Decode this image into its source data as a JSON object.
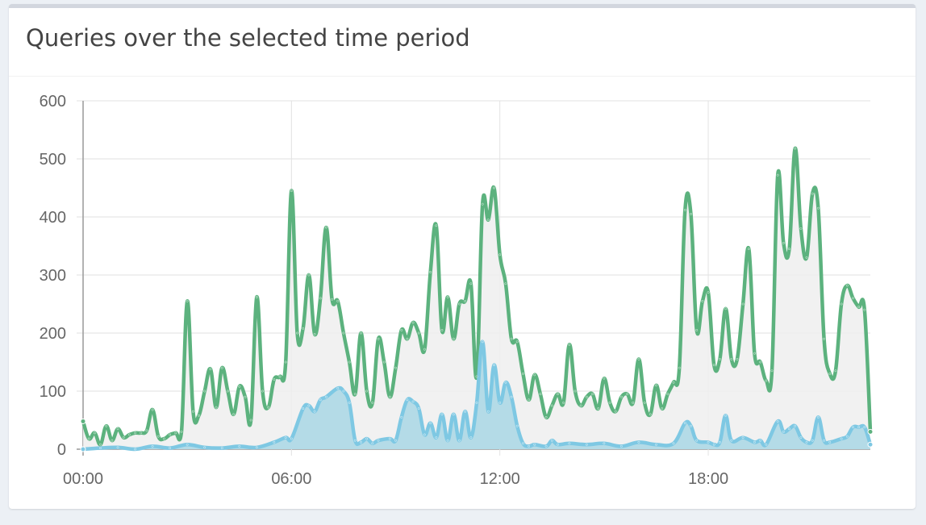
{
  "card": {
    "title": "Queries over the selected time period"
  },
  "colors": {
    "total": "#5cb27e",
    "total_fill": "#eeeeee",
    "blocked": "#7ec8e3",
    "blocked_fill": "#add8e6",
    "grid": "#e2e2e2",
    "axis": "#999999"
  },
  "chart_data": {
    "type": "area",
    "title": "Queries over the selected time period",
    "xlabel": "",
    "ylabel": "",
    "x_unit": "hours",
    "xlim": [
      0,
      22.667
    ],
    "ylim": [
      0,
      600
    ],
    "y_ticks": [
      0,
      100,
      200,
      300,
      400,
      500,
      600
    ],
    "y_tick_labels": [
      "0",
      "100",
      "200",
      "300",
      "400",
      "500",
      "600"
    ],
    "x_ticks": [
      0,
      6,
      12,
      18
    ],
    "x_tick_labels": [
      "00:00",
      "06:00",
      "12:00",
      "18:00"
    ],
    "grid": true,
    "legend": "none",
    "series": [
      {
        "key": "total",
        "points": [
          [
            0,
            48
          ],
          [
            0.167,
            18
          ],
          [
            0.333,
            28
          ],
          [
            0.5,
            8
          ],
          [
            0.667,
            40
          ],
          [
            0.833,
            15
          ],
          [
            1,
            35
          ],
          [
            1.167,
            20
          ],
          [
            1.333,
            25
          ],
          [
            1.5,
            28
          ],
          [
            1.667,
            28
          ],
          [
            1.833,
            32
          ],
          [
            2,
            68
          ],
          [
            2.167,
            22
          ],
          [
            2.333,
            18
          ],
          [
            2.5,
            25
          ],
          [
            2.667,
            28
          ],
          [
            2.833,
            30
          ],
          [
            3,
            255
          ],
          [
            3.167,
            65
          ],
          [
            3.333,
            58
          ],
          [
            3.5,
            100
          ],
          [
            3.667,
            138
          ],
          [
            3.833,
            72
          ],
          [
            4,
            140
          ],
          [
            4.167,
            100
          ],
          [
            4.333,
            60
          ],
          [
            4.5,
            108
          ],
          [
            4.667,
            90
          ],
          [
            4.833,
            50
          ],
          [
            5,
            262
          ],
          [
            5.167,
            100
          ],
          [
            5.333,
            72
          ],
          [
            5.5,
            120
          ],
          [
            5.667,
            125
          ],
          [
            5.833,
            150
          ],
          [
            6,
            445
          ],
          [
            6.167,
            200
          ],
          [
            6.333,
            208
          ],
          [
            6.5,
            300
          ],
          [
            6.667,
            198
          ],
          [
            6.833,
            260
          ],
          [
            7,
            382
          ],
          [
            7.167,
            258
          ],
          [
            7.333,
            255
          ],
          [
            7.5,
            200
          ],
          [
            7.667,
            150
          ],
          [
            7.833,
            95
          ],
          [
            8,
            200
          ],
          [
            8.167,
            100
          ],
          [
            8.333,
            80
          ],
          [
            8.5,
            190
          ],
          [
            8.667,
            150
          ],
          [
            8.833,
            90
          ],
          [
            9,
            140
          ],
          [
            9.167,
            205
          ],
          [
            9.333,
            190
          ],
          [
            9.5,
            218
          ],
          [
            9.667,
            200
          ],
          [
            9.833,
            172
          ],
          [
            10,
            305
          ],
          [
            10.167,
            385
          ],
          [
            10.333,
            205
          ],
          [
            10.5,
            262
          ],
          [
            10.667,
            190
          ],
          [
            10.833,
            250
          ],
          [
            11,
            255
          ],
          [
            11.167,
            285
          ],
          [
            11.333,
            125
          ],
          [
            11.5,
            422
          ],
          [
            11.667,
            395
          ],
          [
            11.833,
            450
          ],
          [
            12,
            335
          ],
          [
            12.167,
            285
          ],
          [
            12.333,
            190
          ],
          [
            12.5,
            185
          ],
          [
            12.667,
            130
          ],
          [
            12.833,
            85
          ],
          [
            13,
            128
          ],
          [
            13.167,
            95
          ],
          [
            13.333,
            55
          ],
          [
            13.5,
            75
          ],
          [
            13.667,
            95
          ],
          [
            13.833,
            80
          ],
          [
            14,
            180
          ],
          [
            14.167,
            100
          ],
          [
            14.333,
            75
          ],
          [
            14.5,
            90
          ],
          [
            14.667,
            95
          ],
          [
            14.833,
            70
          ],
          [
            15,
            122
          ],
          [
            15.167,
            80
          ],
          [
            15.333,
            65
          ],
          [
            15.5,
            90
          ],
          [
            15.667,
            95
          ],
          [
            15.833,
            80
          ],
          [
            16,
            155
          ],
          [
            16.167,
            80
          ],
          [
            16.333,
            60
          ],
          [
            16.5,
            110
          ],
          [
            16.667,
            70
          ],
          [
            16.833,
            95
          ],
          [
            17,
            115
          ],
          [
            17.167,
            140
          ],
          [
            17.333,
            412
          ],
          [
            17.5,
            405
          ],
          [
            17.667,
            205
          ],
          [
            17.833,
            255
          ],
          [
            18,
            270
          ],
          [
            18.167,
            145
          ],
          [
            18.333,
            155
          ],
          [
            18.5,
            242
          ],
          [
            18.667,
            155
          ],
          [
            18.833,
            155
          ],
          [
            19,
            250
          ],
          [
            19.167,
            345
          ],
          [
            19.333,
            165
          ],
          [
            19.5,
            150
          ],
          [
            19.667,
            118
          ],
          [
            19.833,
            135
          ],
          [
            20,
            472
          ],
          [
            20.167,
            355
          ],
          [
            20.333,
            345
          ],
          [
            20.5,
            518
          ],
          [
            20.667,
            380
          ],
          [
            20.833,
            330
          ],
          [
            21,
            440
          ],
          [
            21.167,
            415
          ],
          [
            21.333,
            190
          ],
          [
            21.5,
            130
          ],
          [
            21.667,
            135
          ],
          [
            21.833,
            250
          ],
          [
            22,
            282
          ],
          [
            22.167,
            260
          ],
          [
            22.333,
            245
          ],
          [
            22.5,
            240
          ],
          [
            22.667,
            30
          ]
        ]
      },
      {
        "key": "blocked",
        "points": [
          [
            0,
            0
          ],
          [
            0.5,
            2
          ],
          [
            1,
            3
          ],
          [
            1.5,
            0
          ],
          [
            2,
            5
          ],
          [
            2.5,
            2
          ],
          [
            3,
            8
          ],
          [
            3.5,
            3
          ],
          [
            4,
            2
          ],
          [
            4.5,
            5
          ],
          [
            5,
            3
          ],
          [
            5.5,
            12
          ],
          [
            5.833,
            20
          ],
          [
            6,
            18
          ],
          [
            6.333,
            70
          ],
          [
            6.5,
            75
          ],
          [
            6.667,
            65
          ],
          [
            6.833,
            85
          ],
          [
            7,
            90
          ],
          [
            7.333,
            105
          ],
          [
            7.5,
            100
          ],
          [
            7.667,
            80
          ],
          [
            7.833,
            15
          ],
          [
            8,
            12
          ],
          [
            8.167,
            18
          ],
          [
            8.333,
            10
          ],
          [
            8.5,
            15
          ],
          [
            8.833,
            18
          ],
          [
            9,
            15
          ],
          [
            9.167,
            55
          ],
          [
            9.333,
            85
          ],
          [
            9.5,
            82
          ],
          [
            9.667,
            70
          ],
          [
            9.833,
            25
          ],
          [
            10,
            45
          ],
          [
            10.167,
            20
          ],
          [
            10.333,
            60
          ],
          [
            10.5,
            15
          ],
          [
            10.667,
            60
          ],
          [
            10.833,
            15
          ],
          [
            11,
            65
          ],
          [
            11.167,
            20
          ],
          [
            11.333,
            80
          ],
          [
            11.5,
            185
          ],
          [
            11.667,
            65
          ],
          [
            11.833,
            145
          ],
          [
            12,
            80
          ],
          [
            12.167,
            115
          ],
          [
            12.333,
            90
          ],
          [
            12.5,
            40
          ],
          [
            12.667,
            10
          ],
          [
            12.833,
            5
          ],
          [
            13,
            8
          ],
          [
            13.333,
            5
          ],
          [
            13.5,
            15
          ],
          [
            13.667,
            8
          ],
          [
            14,
            10
          ],
          [
            14.5,
            8
          ],
          [
            15,
            10
          ],
          [
            15.5,
            5
          ],
          [
            16,
            12
          ],
          [
            16.5,
            8
          ],
          [
            17,
            10
          ],
          [
            17.333,
            45
          ],
          [
            17.5,
            40
          ],
          [
            17.667,
            15
          ],
          [
            18,
            12
          ],
          [
            18.167,
            8
          ],
          [
            18.333,
            12
          ],
          [
            18.5,
            58
          ],
          [
            18.667,
            15
          ],
          [
            19,
            20
          ],
          [
            19.333,
            12
          ],
          [
            19.5,
            15
          ],
          [
            19.667,
            8
          ],
          [
            20,
            48
          ],
          [
            20.167,
            30
          ],
          [
            20.333,
            35
          ],
          [
            20.5,
            40
          ],
          [
            20.667,
            20
          ],
          [
            20.833,
            12
          ],
          [
            21,
            15
          ],
          [
            21.167,
            55
          ],
          [
            21.333,
            15
          ],
          [
            21.5,
            12
          ],
          [
            21.833,
            18
          ],
          [
            22,
            22
          ],
          [
            22.167,
            38
          ],
          [
            22.333,
            38
          ],
          [
            22.5,
            38
          ],
          [
            22.667,
            8
          ]
        ]
      }
    ]
  }
}
